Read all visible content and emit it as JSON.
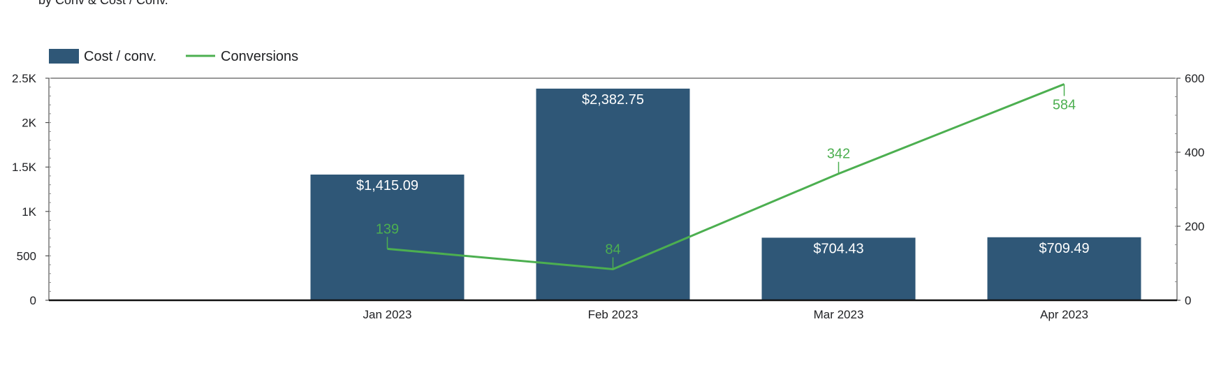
{
  "header": {
    "subtitle": "by Conv & Cost / Conv."
  },
  "chart_data": {
    "type": "bar",
    "categories": [
      "",
      "Jan 2023",
      "Feb 2023",
      "Mar 2023",
      "Apr 2023"
    ],
    "series": [
      {
        "name": "Cost / conv.",
        "type": "bar",
        "axis": "left",
        "color": "#2f5777",
        "values": [
          null,
          1415.09,
          2382.75,
          704.43,
          709.49
        ],
        "data_labels": [
          "",
          "$1,415.09",
          "$2,382.75",
          "$704.43",
          "$709.49"
        ]
      },
      {
        "name": "Conversions",
        "type": "line",
        "axis": "right",
        "color": "#4caf50",
        "values": [
          null,
          139,
          84,
          342,
          584
        ],
        "data_labels": [
          "",
          "139",
          "84",
          "342",
          "584"
        ]
      }
    ],
    "y_left": {
      "ylim": [
        0,
        2500
      ],
      "ticks": [
        0,
        500,
        1000,
        1500,
        2000,
        2500
      ],
      "tick_labels": [
        "0",
        "500",
        "1K",
        "1.5K",
        "2K",
        "2.5K"
      ]
    },
    "y_right": {
      "ylim": [
        0,
        600
      ],
      "ticks": [
        0,
        200,
        400,
        600
      ],
      "tick_labels": [
        "0",
        "200",
        "400",
        "600"
      ]
    },
    "legend_position": "top-left",
    "grid": false
  }
}
